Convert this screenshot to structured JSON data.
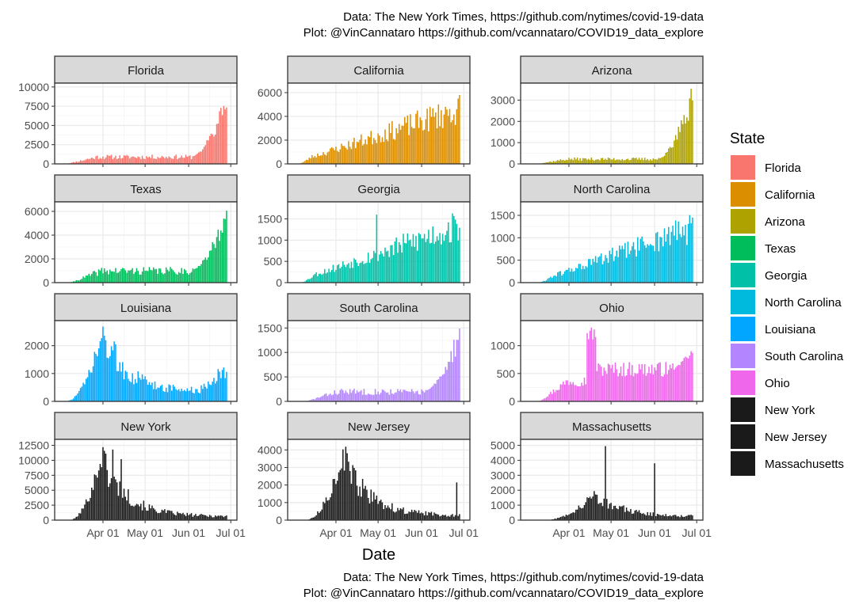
{
  "caption": {
    "top_line1": "Data: The New York Times, https://github.com/nytimes/covid-19-data",
    "top_line2": "Plot: @VinCannataro https://github.com/vcannataro/COVID19_data_explore",
    "bottom_line1": "Data: The New York Times, https://github.com/nytimes/covid-19-data",
    "bottom_line2": "Plot: @VinCannataro https://github.com/vcannataro/COVID19_data_explore"
  },
  "colors": {
    "panel_border": "#333333",
    "strip_bg": "#d9d9d9",
    "grid_major": "#ebebeb",
    "grid_minor": "#f5f5f5"
  },
  "chart_data": {
    "type": "bar",
    "layout": "facet-wrap 4 rows x 3 columns, free y scales",
    "xlabel": "Date",
    "ylabel": "",
    "x_range": [
      "2020-03-01",
      "2020-06-30"
    ],
    "x_ticks": [
      "Apr 01",
      "May 01",
      "Jun 01",
      "Jul 01"
    ],
    "grid": true,
    "legend": {
      "title": "State",
      "position": "right"
    },
    "series": [
      {
        "name": "Florida",
        "color": "#F8766D",
        "ylim": [
          0,
          10500
        ],
        "yticks": [
          "0",
          "2500",
          "5000",
          "7500",
          "10000"
        ],
        "shape": "low_rise",
        "start": 5,
        "base": 1000,
        "end_value": 9500,
        "peak": [],
        "seed": 11
      },
      {
        "name": "California",
        "color": "#DB8E00",
        "ylim": [
          0,
          6800
        ],
        "yticks": [
          "0",
          "2000",
          "4000",
          "6000"
        ],
        "shape": "steady_rise",
        "start": 5,
        "base": 1800,
        "end_value": 6400,
        "peak": [],
        "seed": 23
      },
      {
        "name": "Arizona",
        "color": "#AEA200",
        "ylim": [
          0,
          3800
        ],
        "yticks": [
          "0",
          "1000",
          "2000",
          "3000"
        ],
        "shape": "low_rise",
        "start": 8,
        "base": 250,
        "end_value": 3700,
        "peak": [],
        "seed": 37
      },
      {
        "name": "Texas",
        "color": "#00BD5C",
        "ylim": [
          0,
          6800
        ],
        "yticks": [
          "0",
          "2000",
          "4000",
          "6000"
        ],
        "shape": "low_rise",
        "start": 8,
        "base": 1100,
        "end_value": 6500,
        "peak": [],
        "seed": 41
      },
      {
        "name": "Georgia",
        "color": "#00C1A7",
        "ylim": [
          0,
          1900
        ],
        "yticks": [
          "0",
          "500",
          "1000",
          "1500"
        ],
        "shape": "steady_rise",
        "start": 7,
        "base": 650,
        "end_value": 1850,
        "peak": [],
        "seed": 53
      },
      {
        "name": "North Carolina",
        "color": "#00BADE",
        "ylim": [
          0,
          1800
        ],
        "yticks": [
          "0",
          "500",
          "1000",
          "1500"
        ],
        "shape": "steady_rise",
        "start": 10,
        "base": 300,
        "end_value": 1700,
        "peak": [],
        "seed": 61
      },
      {
        "name": "Louisiana",
        "color": "#00A6FF",
        "ylim": [
          0,
          2900
        ],
        "yticks": [
          "0",
          "1000",
          "2000"
        ],
        "shape": "early_peak",
        "start": 5,
        "base": 400,
        "end_value": 1500,
        "peak": [
          31,
          2700
        ],
        "seed": 73
      },
      {
        "name": "South Carolina",
        "color": "#B385FF",
        "ylim": [
          0,
          1650
        ],
        "yticks": [
          "0",
          "500",
          "1000",
          "1500"
        ],
        "shape": "low_rise",
        "start": 10,
        "base": 220,
        "end_value": 1600,
        "peak": [],
        "seed": 83
      },
      {
        "name": "Ohio",
        "color": "#EF67EB",
        "ylim": [
          0,
          1450
        ],
        "yticks": [
          "0",
          "500",
          "1000"
        ],
        "shape": "mid_peak",
        "start": 10,
        "base": 550,
        "end_value": 950,
        "peak": [
          48,
          1350
        ],
        "seed": 97
      },
      {
        "name": "New York",
        "color": "#1a1a1a",
        "ylim": [
          0,
          13500
        ],
        "yticks": [
          "0",
          "2500",
          "5000",
          "7500",
          "10000",
          "12500"
        ],
        "shape": "early_peak",
        "start": 8,
        "base": 700,
        "end_value": 700,
        "peak": [
          30,
          12000
        ],
        "seed": 101
      },
      {
        "name": "New Jersey",
        "color": "#1a1a1a",
        "ylim": [
          0,
          4600
        ],
        "yticks": [
          "0",
          "1000",
          "2000",
          "3000",
          "4000"
        ],
        "shape": "early_peak",
        "start": 10,
        "base": 300,
        "end_value": 300,
        "peak": [
          36,
          4100
        ],
        "seed": 113
      },
      {
        "name": "Massachusetts",
        "color": "#1a1a1a",
        "ylim": [
          0,
          5400
        ],
        "yticks": [
          "0",
          "1000",
          "2000",
          "3000",
          "4000",
          "5000"
        ],
        "shape": "early_peak",
        "start": 14,
        "base": 300,
        "end_value": 200,
        "peak": [
          50,
          2000
        ],
        "seed": 127
      }
    ]
  }
}
